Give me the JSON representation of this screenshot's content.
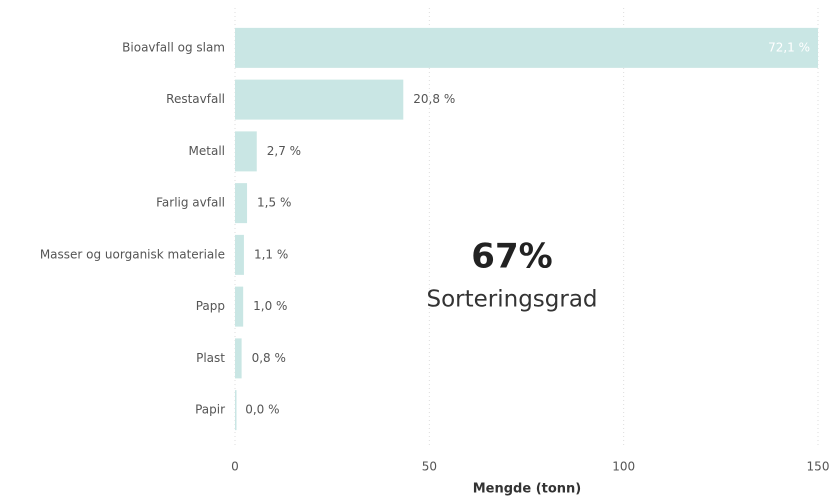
{
  "chart_data": {
    "type": "barh",
    "categories": [
      "Bioavfall og slam",
      "Restavfall",
      "Metall",
      "Farlig avfall",
      "Masser og uorganisk materiale",
      "Papp",
      "Plast",
      "Papir"
    ],
    "values": [
      150,
      43.3,
      5.6,
      3.1,
      2.3,
      2.1,
      1.7,
      0.05
    ],
    "value_labels": [
      "72,1 %",
      "20,8 %",
      "2,7 %",
      "1,5 %",
      "1,1 %",
      "1,0 %",
      "0,8 %",
      "0,0 %"
    ],
    "color": "#c9e6e4",
    "x_label": "Mengde (tonn)",
    "xlim": [
      0,
      150
    ],
    "xticks": [
      0,
      50,
      100,
      150
    ],
    "grid": true
  },
  "kpi": {
    "value": "67%",
    "label": "Sorteringsgrad"
  }
}
